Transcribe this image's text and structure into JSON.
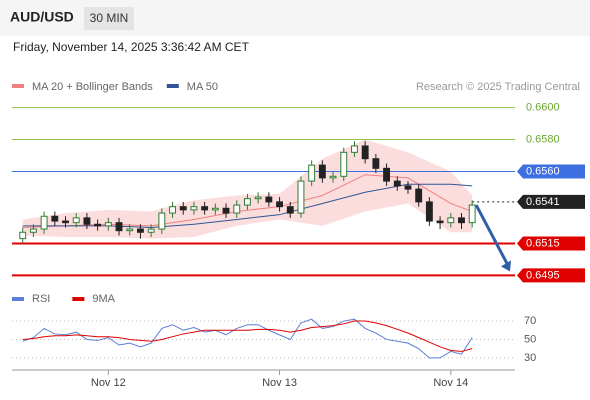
{
  "header": {
    "symbol": "AUD/USD",
    "timeframe": "30 MIN",
    "datetime": "Friday, November 14, 2025 3:36:42 AM CET"
  },
  "chart_data": [
    {
      "type": "candlestick",
      "legend": [
        {
          "name": "MA 20 + Bollinger Bands",
          "color": "#f08080"
        },
        {
          "name": "MA 50",
          "color": "#2f5597"
        }
      ],
      "credit": "Research © 2025 Trading Central",
      "xlim": [
        -1,
        46
      ],
      "ylim": [
        0.6489,
        0.6611
      ],
      "xticks": [
        {
          "value": 8,
          "label": "Nov 12"
        },
        {
          "value": 24,
          "label": "Nov 13"
        },
        {
          "value": 40,
          "label": "Nov 14"
        }
      ],
      "open": [
        0.6518,
        0.6522,
        0.6524,
        0.6532,
        0.6529,
        0.6528,
        0.6531,
        0.6527,
        0.6526,
        0.6528,
        0.6523,
        0.6524,
        0.6522,
        0.6524,
        0.6534,
        0.6538,
        0.6536,
        0.6538,
        0.6536,
        0.6537,
        0.6534,
        0.6539,
        0.6543,
        0.6544,
        0.6541,
        0.6538,
        0.6534,
        0.6554,
        0.6564,
        0.6556,
        0.6557,
        0.6572,
        0.6576,
        0.6568,
        0.6562,
        0.6554,
        0.6551,
        0.6549,
        0.6541,
        0.6529,
        0.6528,
        0.6531,
        0.6528
      ],
      "high": [
        0.6525,
        0.6527,
        0.6535,
        0.6535,
        0.6532,
        0.6534,
        0.6534,
        0.653,
        0.6531,
        0.6531,
        0.6527,
        0.6527,
        0.6527,
        0.6537,
        0.6541,
        0.6541,
        0.6541,
        0.6541,
        0.654,
        0.654,
        0.6542,
        0.6546,
        0.6547,
        0.6547,
        0.6544,
        0.6541,
        0.6557,
        0.6567,
        0.6567,
        0.656,
        0.6575,
        0.6579,
        0.6579,
        0.6571,
        0.6565,
        0.6557,
        0.6554,
        0.6552,
        0.6544,
        0.6532,
        0.6534,
        0.6534,
        0.6542
      ],
      "low": [
        0.6515,
        0.6519,
        0.6521,
        0.6526,
        0.6525,
        0.6525,
        0.6524,
        0.6523,
        0.6523,
        0.652,
        0.652,
        0.6518,
        0.6519,
        0.6521,
        0.6531,
        0.6533,
        0.6533,
        0.6533,
        0.6533,
        0.6531,
        0.6531,
        0.6536,
        0.654,
        0.6538,
        0.6535,
        0.6531,
        0.6531,
        0.6551,
        0.6553,
        0.6553,
        0.6554,
        0.6569,
        0.6565,
        0.6559,
        0.6551,
        0.6548,
        0.6546,
        0.6538,
        0.6526,
        0.6524,
        0.6525,
        0.6524,
        0.6525
      ],
      "close": [
        0.6522,
        0.6524,
        0.6532,
        0.6529,
        0.6528,
        0.6531,
        0.6527,
        0.6526,
        0.6528,
        0.6523,
        0.6524,
        0.6522,
        0.6524,
        0.6534,
        0.6538,
        0.6536,
        0.6538,
        0.6536,
        0.6537,
        0.6534,
        0.6539,
        0.6543,
        0.6544,
        0.6541,
        0.6538,
        0.6534,
        0.6554,
        0.6564,
        0.6556,
        0.6557,
        0.6572,
        0.6576,
        0.6568,
        0.6562,
        0.6554,
        0.6551,
        0.6549,
        0.6541,
        0.6529,
        0.6528,
        0.6531,
        0.6528,
        0.6539
      ],
      "up_color": "#2e7d32",
      "down_color": "#222222",
      "bands": {
        "x": [
          0,
          4,
          8,
          12,
          16,
          20,
          24,
          28,
          32,
          36,
          40,
          42
        ],
        "ma20": [
          0.6525,
          0.6526,
          0.6527,
          0.6526,
          0.653,
          0.6535,
          0.6538,
          0.6545,
          0.6558,
          0.6556,
          0.654,
          0.6535
        ],
        "upper": [
          0.653,
          0.6534,
          0.6536,
          0.6535,
          0.6542,
          0.6545,
          0.6546,
          0.6568,
          0.658,
          0.6572,
          0.656,
          0.6545
        ],
        "lower": [
          0.652,
          0.6519,
          0.6519,
          0.6518,
          0.6519,
          0.6526,
          0.653,
          0.6526,
          0.6535,
          0.654,
          0.6522,
          0.6522
        ],
        "ma50": [
          0.6526,
          0.6526,
          0.6526,
          0.6525,
          0.6527,
          0.653,
          0.6533,
          0.654,
          0.6547,
          0.6552,
          0.6552,
          0.6551
        ],
        "band_color": "#fbd5d5"
      },
      "levels": [
        {
          "value": {
            "value": 0.66,
            "label": "0.6600"
          },
          "color": "#8bc34a",
          "boxed": false
        },
        {
          "value": {
            "value": 0.658,
            "label": "0.6580"
          },
          "color": "#8bc34a",
          "boxed": false
        },
        {
          "value": {
            "value": 0.656,
            "label": "0.6560"
          },
          "color": "#3d6fe0",
          "boxed": true
        },
        {
          "value": 0.6541,
          "color": "#222222",
          "boxed": true,
          "dotted": true
        },
        {
          "value": 0.6515,
          "color": "#e00000",
          "boxed": true
        },
        {
          "value": 0.6495,
          "color": "#e00000",
          "boxed": true
        }
      ]
    },
    {
      "type": "line",
      "ylim": [
        19,
        82
      ],
      "yticks": [
        70,
        50,
        30
      ],
      "xlim": [
        -1,
        46
      ],
      "series": [
        {
          "name": "RSI",
          "color": "#5b7fd6",
          "values": [
            48,
            52,
            62,
            56,
            55,
            58,
            50,
            49,
            52,
            44,
            46,
            42,
            46,
            62,
            66,
            60,
            63,
            58,
            60,
            55,
            62,
            66,
            66,
            60,
            55,
            50,
            68,
            72,
            62,
            64,
            70,
            72,
            62,
            57,
            50,
            48,
            46,
            40,
            30,
            30,
            37,
            34,
            52
          ]
        },
        {
          "name": "9MA",
          "color": "#e00000",
          "values": [
            50,
            51,
            53,
            54,
            54,
            55,
            54,
            53,
            53,
            52,
            50,
            49,
            48,
            50,
            53,
            56,
            58,
            60,
            60,
            60,
            60,
            60,
            61,
            61,
            60,
            58,
            60,
            63,
            64,
            65,
            67,
            70,
            70,
            68,
            65,
            61,
            57,
            52,
            47,
            42,
            38,
            37,
            40
          ]
        }
      ]
    }
  ]
}
